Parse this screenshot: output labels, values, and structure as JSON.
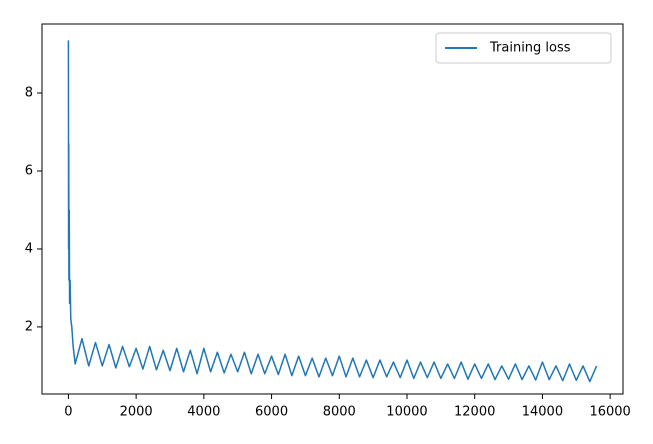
{
  "chart_data": {
    "type": "line",
    "x": [
      0,
      5,
      10,
      15,
      25,
      35,
      50,
      70,
      100,
      140,
      200,
      400,
      600,
      800,
      1000,
      1200,
      1400,
      1600,
      1800,
      2000,
      2200,
      2400,
      2600,
      2800,
      3000,
      3200,
      3400,
      3600,
      3800,
      4000,
      4200,
      4400,
      4600,
      4800,
      5000,
      5200,
      5400,
      5600,
      5800,
      6000,
      6200,
      6400,
      6600,
      6800,
      7000,
      7200,
      7400,
      7600,
      7800,
      8000,
      8200,
      8400,
      8600,
      8800,
      9000,
      9200,
      9400,
      9600,
      9800,
      10000,
      10200,
      10400,
      10600,
      10800,
      11000,
      11200,
      11400,
      11600,
      11800,
      12000,
      12200,
      12400,
      12600,
      12800,
      13000,
      13200,
      13400,
      13600,
      13800,
      14000,
      14200,
      14400,
      14600,
      14800,
      15000,
      15200,
      15400,
      15600
    ],
    "series": [
      {
        "name": "Training loss",
        "color": "#1f77b4",
        "values": [
          9.35,
          4.0,
          6.7,
          3.2,
          5.0,
          2.6,
          3.2,
          2.2,
          2.0,
          1.5,
          1.05,
          1.7,
          1.0,
          1.6,
          1.0,
          1.55,
          0.95,
          1.5,
          0.98,
          1.45,
          0.92,
          1.5,
          0.9,
          1.4,
          0.88,
          1.45,
          0.85,
          1.4,
          0.8,
          1.45,
          0.85,
          1.35,
          0.82,
          1.3,
          0.85,
          1.35,
          0.8,
          1.3,
          0.8,
          1.25,
          0.78,
          1.3,
          0.75,
          1.25,
          0.75,
          1.2,
          0.72,
          1.2,
          0.75,
          1.25,
          0.72,
          1.2,
          0.72,
          1.15,
          0.7,
          1.15,
          0.72,
          1.1,
          0.7,
          1.15,
          0.68,
          1.1,
          0.7,
          1.1,
          0.68,
          1.05,
          0.68,
          1.1,
          0.66,
          1.05,
          0.68,
          1.05,
          0.65,
          1.0,
          0.66,
          1.05,
          0.65,
          1.0,
          0.64,
          1.1,
          0.65,
          1.0,
          0.62,
          1.05,
          0.63,
          1.0,
          0.6,
          1.0
        ]
      }
    ],
    "xlim": [
      -780,
      16380
    ],
    "ylim": [
      0.28,
      9.77
    ],
    "xticks": [
      0,
      2000,
      4000,
      6000,
      8000,
      10000,
      12000,
      14000,
      16000
    ],
    "yticks": [
      2,
      4,
      6,
      8
    ],
    "legend": "upper right"
  }
}
